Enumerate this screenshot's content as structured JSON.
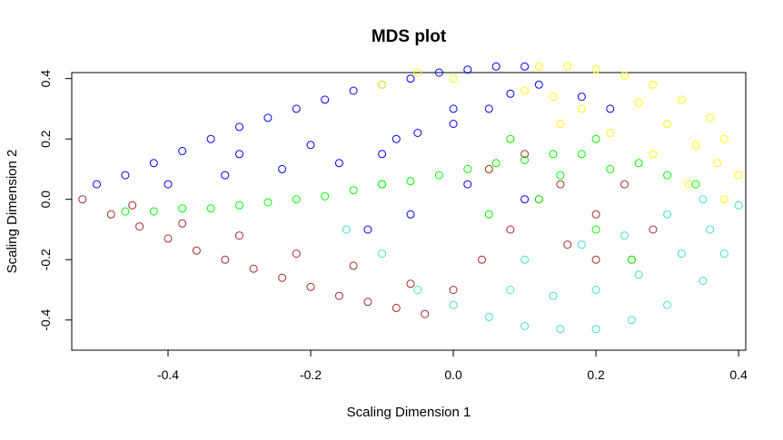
{
  "chart_data": {
    "type": "scatter",
    "title": "MDS plot",
    "xlabel": "Scaling Dimension 1",
    "ylabel": "Scaling Dimension 2",
    "xlim": [
      -0.535,
      0.41
    ],
    "ylim": [
      -0.5,
      0.42
    ],
    "xticks": [
      -0.4,
      -0.2,
      0.0,
      0.2,
      0.4
    ],
    "xtick_labels": [
      "-0.4",
      "-0.2",
      "0.0",
      "0.2",
      "0.4"
    ],
    "yticks": [
      -0.4,
      -0.2,
      0.0,
      0.2,
      0.4
    ],
    "ytick_labels": [
      "-0.4",
      "-0.2",
      "0.0",
      "0.2",
      "0.4"
    ],
    "grid": false,
    "legend": "none",
    "marker": "open-circle",
    "colors": {
      "blue": "#0000ff",
      "yellow": "#ffff00",
      "brown": "#a52a2a",
      "turquoise": "#40e0d0",
      "green": "#00ff00"
    },
    "series": [
      {
        "color": "#0000ff",
        "x": [
          -0.5,
          -0.46,
          -0.42,
          -0.38,
          -0.34,
          -0.3,
          -0.26,
          -0.22,
          -0.18,
          -0.14,
          -0.1,
          -0.06,
          -0.02,
          0.02,
          0.06,
          0.1,
          -0.4,
          -0.32,
          -0.24,
          -0.16,
          -0.08,
          0.0,
          0.08,
          -0.3,
          -0.2,
          -0.1,
          -0.05,
          0.0,
          0.05,
          0.12,
          0.18,
          0.22,
          -0.12,
          -0.06,
          0.02,
          0.1
        ],
        "y": [
          0.05,
          0.08,
          0.12,
          0.16,
          0.2,
          0.24,
          0.27,
          0.3,
          0.33,
          0.36,
          0.38,
          0.4,
          0.42,
          0.43,
          0.44,
          0.44,
          0.05,
          0.08,
          0.1,
          0.12,
          0.2,
          0.3,
          0.35,
          0.15,
          0.18,
          0.15,
          0.22,
          0.25,
          0.3,
          0.38,
          0.34,
          0.3,
          -0.1,
          -0.05,
          0.05,
          0.0
        ]
      },
      {
        "color": "#ffff00",
        "x": [
          0.12,
          0.16,
          0.2,
          0.24,
          0.28,
          0.32,
          0.36,
          0.38,
          0.4,
          0.1,
          0.14,
          0.18,
          0.26,
          0.3,
          0.34,
          0.37,
          0.22,
          0.28,
          0.33,
          0.38,
          -0.1,
          -0.05,
          0.0,
          0.05,
          0.08,
          0.15
        ],
        "y": [
          0.44,
          0.44,
          0.43,
          0.41,
          0.38,
          0.33,
          0.27,
          0.2,
          0.08,
          0.36,
          0.34,
          0.3,
          0.32,
          0.25,
          0.18,
          0.12,
          0.22,
          0.15,
          0.05,
          0.0,
          0.38,
          0.42,
          0.4,
          0.1,
          0.2,
          0.25
        ]
      },
      {
        "color": "#a52a2a",
        "x": [
          -0.52,
          -0.48,
          -0.44,
          -0.4,
          -0.36,
          -0.32,
          -0.28,
          -0.24,
          -0.2,
          -0.16,
          -0.12,
          -0.08,
          -0.04,
          -0.45,
          -0.38,
          -0.3,
          -0.22,
          -0.14,
          -0.06,
          0.0,
          0.04,
          0.08,
          0.12,
          0.16,
          0.2,
          0.24,
          0.28,
          0.05,
          0.1,
          0.15,
          0.2,
          0.25
        ],
        "y": [
          0.0,
          -0.05,
          -0.09,
          -0.13,
          -0.17,
          -0.2,
          -0.23,
          -0.26,
          -0.29,
          -0.32,
          -0.34,
          -0.36,
          -0.38,
          -0.02,
          -0.08,
          -0.12,
          -0.18,
          -0.22,
          -0.28,
          -0.3,
          -0.2,
          -0.1,
          0.0,
          -0.15,
          -0.2,
          0.05,
          -0.1,
          0.1,
          0.15,
          0.05,
          -0.05,
          -0.2
        ]
      },
      {
        "color": "#40e0d0",
        "x": [
          -0.05,
          0.0,
          0.05,
          0.1,
          0.15,
          0.2,
          0.25,
          0.3,
          0.35,
          0.38,
          0.4,
          0.08,
          0.14,
          0.2,
          0.26,
          0.32,
          0.36,
          0.1,
          0.18,
          0.24,
          0.3,
          0.35,
          -0.1,
          -0.15
        ],
        "y": [
          -0.3,
          -0.35,
          -0.39,
          -0.42,
          -0.43,
          -0.43,
          -0.4,
          -0.35,
          -0.27,
          -0.18,
          -0.02,
          -0.3,
          -0.32,
          -0.3,
          -0.25,
          -0.18,
          -0.1,
          -0.2,
          -0.15,
          -0.12,
          -0.05,
          0.0,
          -0.18,
          -0.1
        ]
      },
      {
        "color": "#00ff00",
        "x": [
          -0.46,
          -0.42,
          -0.38,
          -0.34,
          -0.3,
          -0.26,
          -0.22,
          -0.18,
          -0.14,
          -0.1,
          -0.06,
          -0.02,
          0.02,
          0.06,
          0.1,
          0.14,
          0.18,
          0.22,
          0.26,
          0.3,
          0.34,
          0.08,
          0.12,
          0.2,
          0.25,
          0.05,
          -0.1,
          0.15,
          0.2
        ],
        "y": [
          -0.04,
          -0.04,
          -0.03,
          -0.03,
          -0.02,
          -0.01,
          0.0,
          0.01,
          0.03,
          0.05,
          0.06,
          0.08,
          0.1,
          0.12,
          0.13,
          0.15,
          0.15,
          0.1,
          0.12,
          0.08,
          0.05,
          0.2,
          0.0,
          -0.1,
          -0.2,
          -0.05,
          0.05,
          0.08,
          0.2
        ]
      }
    ]
  }
}
